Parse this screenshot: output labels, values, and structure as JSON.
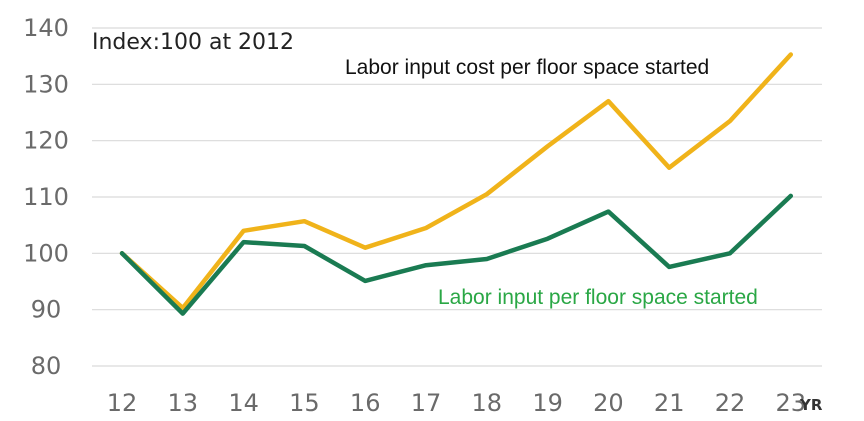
{
  "chart_data": {
    "type": "line",
    "categories": [
      "12",
      "13",
      "14",
      "15",
      "16",
      "17",
      "18",
      "19",
      "20",
      "21",
      "22",
      "23"
    ],
    "x_unit": "YR",
    "note": "Index:100 at 2012",
    "ylim": [
      80,
      140
    ],
    "yticks": [
      "140",
      "130",
      "120",
      "110",
      "100",
      "90",
      "80"
    ],
    "grid": true,
    "legend": "none",
    "series": [
      {
        "name": "Labor input cost per floor space started",
        "color": "#F0B31A",
        "values": [
          100,
          90.3,
          104,
          105.7,
          101,
          104.5,
          110.5,
          119,
          127,
          115.2,
          123.5,
          135.3
        ]
      },
      {
        "name": "Labor input per floor space started",
        "color": "#1A7B52",
        "label_color": "#2AA745",
        "values": [
          100,
          89.3,
          102,
          101.3,
          95.1,
          97.9,
          99,
          102.6,
          107.4,
          97.6,
          100,
          110.2
        ]
      }
    ]
  }
}
